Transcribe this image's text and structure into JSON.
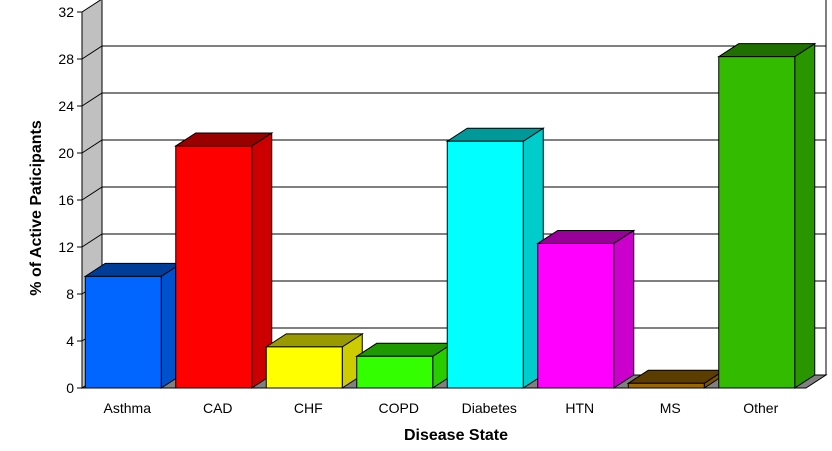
{
  "chart_data": {
    "type": "bar",
    "title": "",
    "xlabel": "Disease State",
    "ylabel": "% of Active Paticipants",
    "ylim": [
      0,
      32
    ],
    "yticks": [
      "0",
      "4",
      "8",
      "12",
      "16",
      "20",
      "24",
      "28",
      "32"
    ],
    "grid": true,
    "legend": "none",
    "style": "3d",
    "categories": [
      "Asthma",
      "CAD",
      "CHF",
      "COPD",
      "Diabetes",
      "HTN",
      "MS",
      "Other"
    ],
    "values": [
      9.5,
      20.6,
      3.5,
      2.7,
      21.0,
      12.3,
      0.4,
      28.2
    ],
    "colors": [
      "#0066FF",
      "#FF0000",
      "#FFFF00",
      "#33FF00",
      "#00FFFF",
      "#FF00FF",
      "#996600",
      "#33BB00"
    ]
  }
}
